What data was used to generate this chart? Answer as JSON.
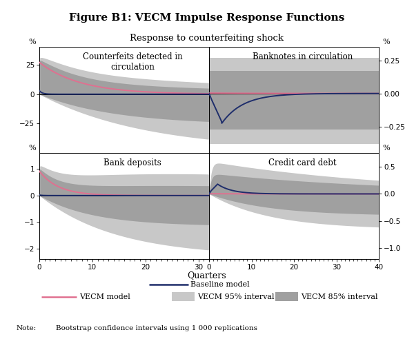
{
  "title": "Figure B1: VECM Impulse Response Functions",
  "subtitle": "Response to counterfeiting shock",
  "xlabel": "Quarters",
  "note_label": "Note:",
  "note_text": "Bootstrap confidence intervals using 1 000 replications",
  "colors": {
    "band95": "#c8c8c8",
    "band85": "#a0a0a0",
    "vecm_line": "#e07090",
    "baseline_line": "#1e2d6b",
    "background": "#ffffff"
  },
  "legend": {
    "vecm_label": "VECM model",
    "baseline_label": "Baseline model",
    "band95_label": "VECM 95% interval",
    "band85_label": "VECM 85% interval"
  },
  "panels": [
    {
      "title": "Counterfeits detected in\ncirculation",
      "ylim": [
        -50,
        40
      ],
      "yticks": [
        25,
        0,
        -25
      ],
      "xlim": [
        0,
        32
      ],
      "xticks": [
        0,
        10,
        20,
        30
      ],
      "ylabel_pos": "left"
    },
    {
      "title": "Banknotes in circulation",
      "ylim": [
        -0.45,
        0.35
      ],
      "yticks": [
        0.25,
        0.0,
        -0.25
      ],
      "xlim": [
        0,
        40
      ],
      "xticks": [
        0,
        10,
        20,
        30,
        40
      ],
      "ylabel_pos": "right"
    },
    {
      "title": "Bank deposits",
      "ylim": [
        -2.4,
        1.6
      ],
      "yticks": [
        1,
        0,
        -1,
        -2
      ],
      "xlim": [
        0,
        32
      ],
      "xticks": [
        0,
        10,
        20,
        30
      ],
      "ylabel_pos": "left"
    },
    {
      "title": "Credit card debt",
      "ylim": [
        -1.2,
        0.75
      ],
      "yticks": [
        0.5,
        0.0,
        -0.5,
        -1.0
      ],
      "xlim": [
        0,
        40
      ],
      "xticks": [
        0,
        10,
        20,
        30,
        40
      ],
      "ylabel_pos": "right"
    }
  ]
}
